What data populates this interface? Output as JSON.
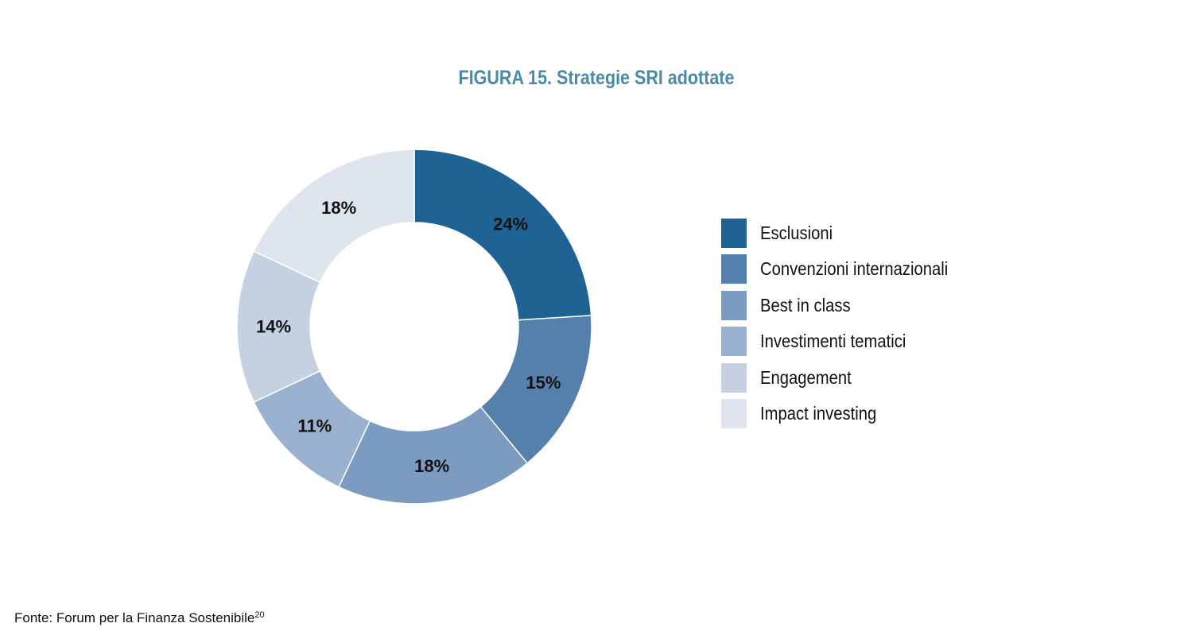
{
  "figure": {
    "title": "FIGURA 15. Strategie SRI adottate",
    "source": "Fonte: Forum per la Finanza Sostenibile",
    "source_note": "20"
  },
  "chart_data": {
    "type": "pie",
    "subtype": "donut",
    "title": "FIGURA 15. Strategie SRI adottate",
    "legend_position": "right",
    "categories": [
      "Esclusioni",
      "Convenzioni internazionali",
      "Best in class",
      "Investimenti tematici",
      "Engagement",
      "Impact investing"
    ],
    "values": [
      24,
      15,
      18,
      11,
      14,
      18
    ],
    "labels": [
      "24%",
      "15%",
      "18%",
      "11%",
      "14%",
      "18%"
    ],
    "colors": [
      "#1f6395",
      "#5480ab",
      "#7b9bc0",
      "#9bb1d0",
      "#c5d1e3",
      "#dfe5ee"
    ],
    "start_angle_deg": 0,
    "direction": "clockwise"
  }
}
